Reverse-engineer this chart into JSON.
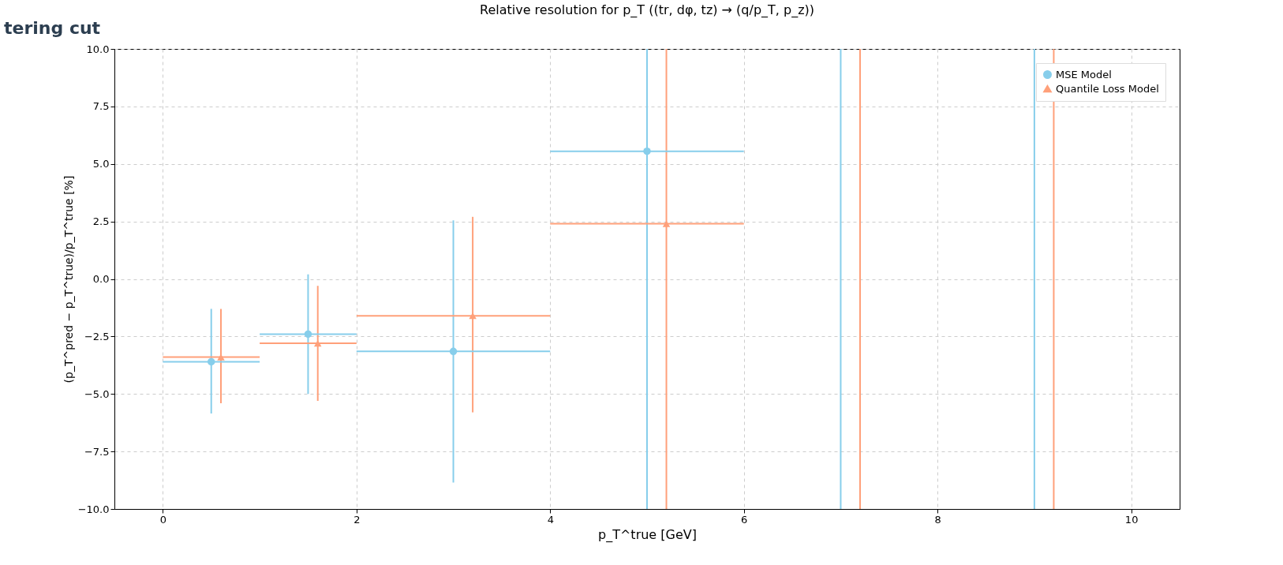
{
  "chart_data": {
    "type": "scatter",
    "title": "Relative resolution for p_T ((tr, dφ, tz) → (q/p_T, p_z))",
    "xlabel": "p_T^true [GeV]",
    "ylabel": "(p_T^pred − p_T^true)/p_T^true [%]",
    "annotations": [
      "tering cut"
    ],
    "xlim": [
      -0.5,
      10.5
    ],
    "xticks": [
      0,
      2,
      4,
      6,
      8,
      10
    ],
    "ylim": [
      -10,
      10
    ],
    "yticks": [
      {
        "value": -10,
        "label": "−10.0"
      },
      {
        "value": -7.5,
        "label": "−7.5"
      },
      {
        "value": -5,
        "label": "−5.0"
      },
      {
        "value": -2.5,
        "label": "−2.5"
      },
      {
        "value": 0,
        "label": "0.0"
      },
      {
        "value": 2.5,
        "label": "2.5"
      },
      {
        "value": 5,
        "label": "5.0"
      },
      {
        "value": 7.5,
        "label": "7.5"
      },
      {
        "value": 10,
        "label": "10.0"
      }
    ],
    "grid": true,
    "legend": "top right",
    "series": [
      {
        "name": "MSE Model",
        "color": "#87ceeb",
        "marker": "circle",
        "x": [
          0.5,
          1.5,
          3.0,
          5.0
        ],
        "values": [
          -3.6,
          -2.4,
          -3.15,
          5.55
        ],
        "errors": [
          [
            -5.85,
            -1.3
          ],
          [
            -5.0,
            0.2
          ],
          [
            -8.85,
            2.55
          ],
          [
            -10,
            10
          ]
        ],
        "xerrors": [
          [
            0,
            1
          ],
          [
            1,
            2
          ],
          [
            2,
            4
          ],
          [
            4,
            6
          ]
        ]
      },
      {
        "name": "Quantile Loss Model",
        "color": "#ffa07a",
        "marker": "triangle",
        "x": [
          0.6,
          1.6,
          3.2,
          5.2
        ],
        "values": [
          -3.4,
          -2.8,
          -1.6,
          2.4
        ],
        "errors": [
          [
            -5.4,
            -1.3
          ],
          [
            -5.3,
            -0.3
          ],
          [
            -5.8,
            2.7
          ],
          [
            -10,
            10
          ]
        ],
        "xerrors": [
          [
            0,
            1
          ],
          [
            1,
            2
          ],
          [
            2,
            4
          ],
          [
            4,
            6
          ]
        ]
      }
    ],
    "ref_lines": [
      {
        "axis": "x",
        "value": 7.0,
        "color": "#87ceeb"
      },
      {
        "axis": "x",
        "value": 9.0,
        "color": "#87ceeb"
      },
      {
        "axis": "x",
        "value": 7.2,
        "color": "#ffa07a"
      },
      {
        "axis": "x",
        "value": 9.2,
        "color": "#ffa07a"
      }
    ]
  }
}
